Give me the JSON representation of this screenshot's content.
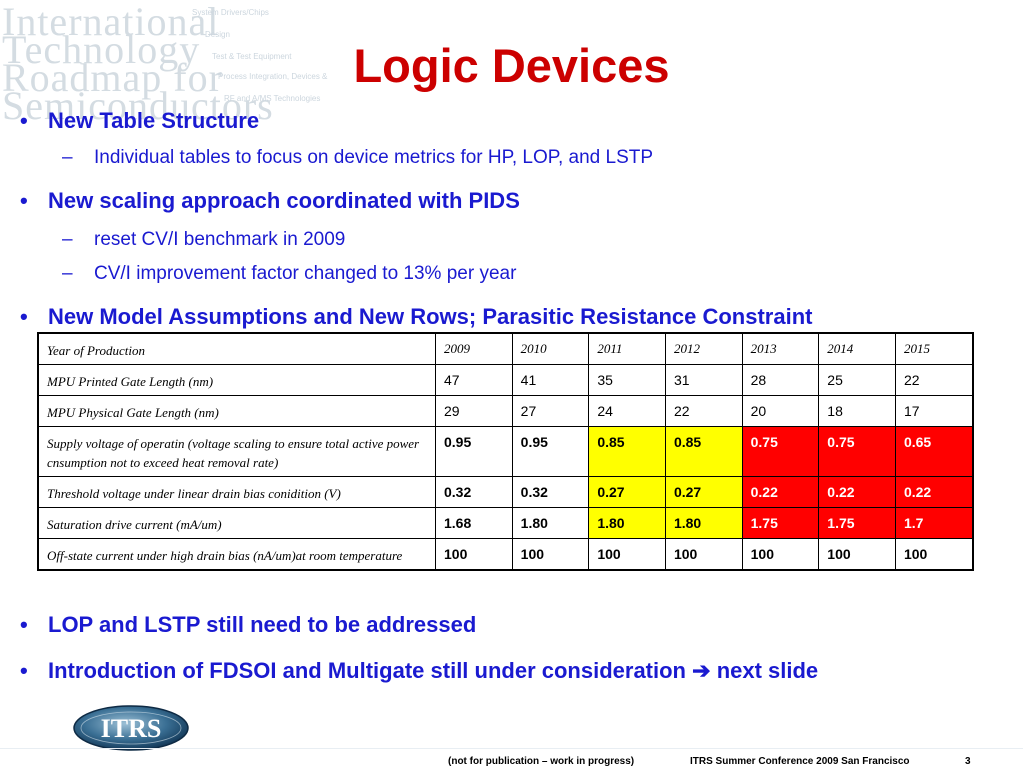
{
  "watermark": {
    "lines": [
      "International",
      "Technology",
      "Roadmap for",
      "Semiconductors"
    ],
    "menu": [
      "System Drivers/Chips",
      "Design",
      "Test & Test Equipment",
      "Process Integration, Devices & Structures",
      "RF and A/MS Technologies"
    ]
  },
  "title": "Logic Devices",
  "bullets": {
    "b1": "New Table Structure",
    "b1_sub1": "Individual tables to focus on device metrics for HP, LOP, and LSTP",
    "b2": "New scaling approach coordinated with PIDS",
    "b2_sub1": "reset CV/I benchmark in 2009",
    "b2_sub2": "CV/I improvement factor changed to 13% per year",
    "b3": "New Model Assumptions and New Rows; Parasitic Resistance Constraint",
    "b4": "LOP and LSTP still need to be addressed",
    "b5": "Introduction of FDSOI and Multigate still under consideration",
    "b5_tail": "next slide"
  },
  "bullet_glyph": "•",
  "dash_glyph": "–",
  "arrow_glyph": "➔",
  "table": {
    "header": {
      "label": "Year of Production",
      "years": [
        "2009",
        "2010",
        "2011",
        "2012",
        "2013",
        "2014",
        "2015"
      ]
    },
    "rows": [
      {
        "label": "MPU Printed Gate Length (nm)",
        "values": [
          "47",
          "41",
          "35",
          "31",
          "28",
          "25",
          "22"
        ]
      },
      {
        "label": "MPU Physical Gate Length (nm)",
        "values": [
          "29",
          "27",
          "24",
          "22",
          "20",
          "18",
          "17"
        ]
      },
      {
        "label": "Supply voltage of operatin (voltage scaling to ensure total active power cnsumption not to exceed heat removal rate)",
        "values": [
          "0.95",
          "0.95",
          "0.85",
          "0.85",
          "0.75",
          "0.75",
          "0.65"
        ]
      },
      {
        "label": "Threshold voltage under linear drain bias conidition (V)",
        "values": [
          "0.32",
          "0.32",
          "0.27",
          "0.27",
          "0.22",
          "0.22",
          "0.22"
        ]
      },
      {
        "label": "Saturation drive current (mA/um)",
        "values": [
          "1.68",
          "1.80",
          "1.80",
          "1.80",
          "1.75",
          "1.75",
          "1.7"
        ]
      },
      {
        "label": "Off-state current under high drain bias (nA/um)at room temperature",
        "values": [
          "100",
          "100",
          "100",
          "100",
          "100",
          "100",
          "100"
        ]
      }
    ],
    "highlight_colors": {
      "yellow": "#ffff00",
      "red": "#ff0000"
    }
  },
  "logo": {
    "text": "ITRS"
  },
  "footer": {
    "note": "(not for publication – work in progress)",
    "conference": "ITRS Summer Conference 2009   San Francisco",
    "page": "3"
  }
}
